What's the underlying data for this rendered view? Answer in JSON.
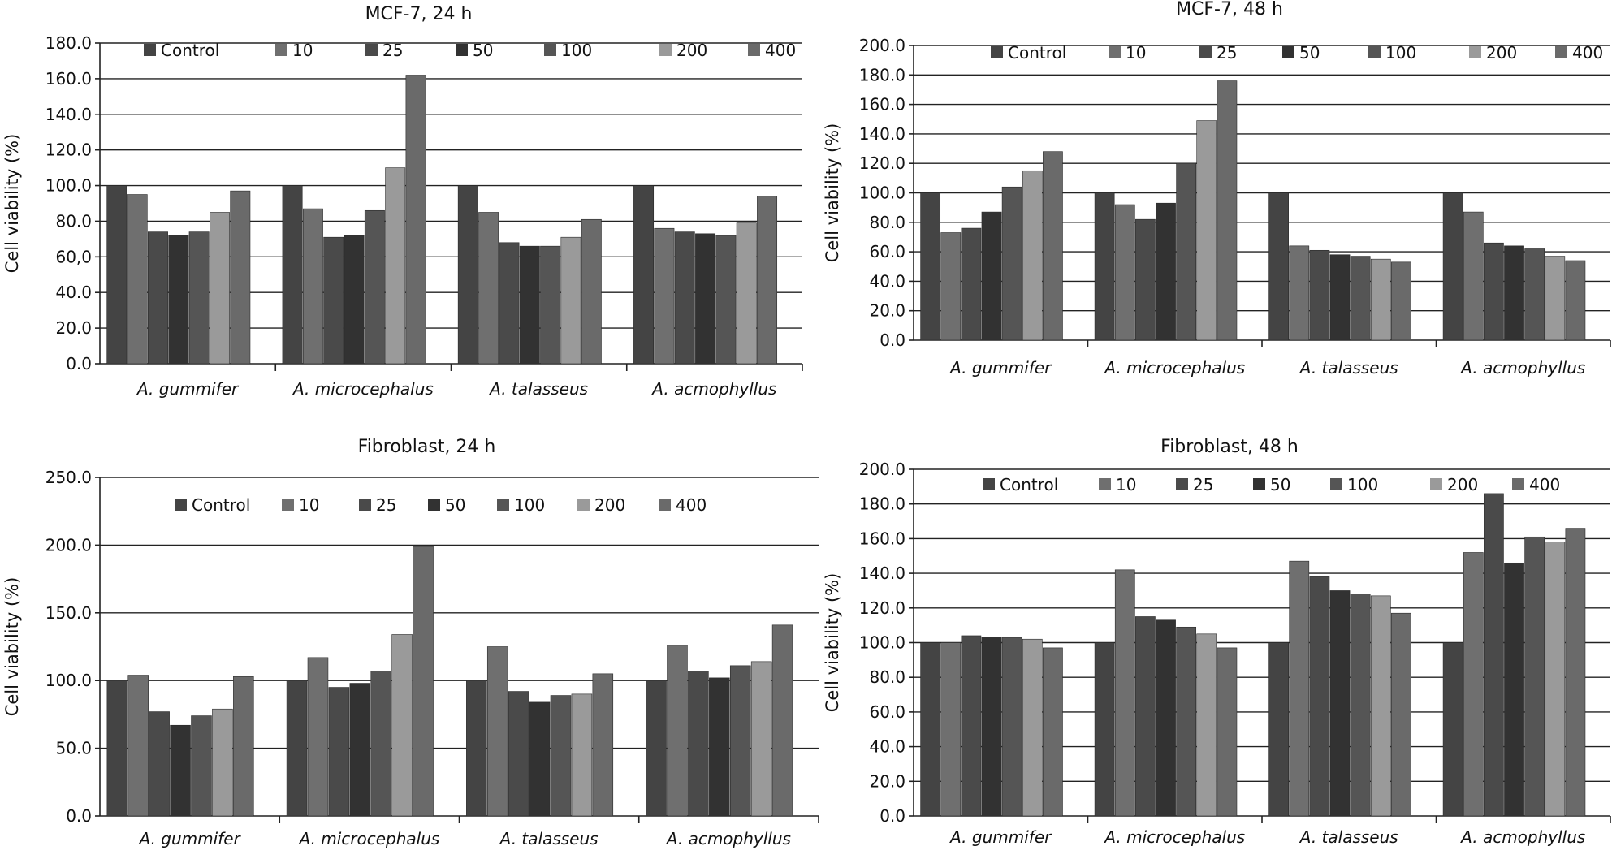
{
  "figure": "cell-viability-panels",
  "colors": {
    "Control": "#444444",
    "10": "#6f6f6f",
    "25": "#4a4a4a",
    "50": "#323232",
    "100": "#555555",
    "200": "#9a9a9a",
    "400": "#6a6a6a"
  },
  "chart_data": [
    {
      "id": "mcf7-24",
      "type": "bar",
      "title": "MCF-7, 24 h",
      "ylabel": "Cell viability  (%)",
      "xlabel": "",
      "ylim": [
        0,
        180
      ],
      "ystep": 20,
      "tick_labels": [
        "0.0",
        "20.0",
        "40.0",
        "60,0",
        "80.0",
        "100.0",
        "120.0",
        "140.0",
        "160.0",
        "180.0"
      ],
      "categories": [
        "A. gummifer",
        "A. microcephalus",
        "A. talasseus",
        "A. acmophyllus"
      ],
      "legend": [
        "Control",
        "10",
        "25",
        "50",
        "100",
        "200",
        "400"
      ],
      "series": [
        {
          "name": "Control",
          "values": [
            100,
            100,
            100,
            100
          ]
        },
        {
          "name": "10",
          "values": [
            95,
            87,
            85,
            76
          ]
        },
        {
          "name": "25",
          "values": [
            74,
            71,
            68,
            74
          ]
        },
        {
          "name": "50",
          "values": [
            72,
            72,
            66,
            73
          ]
        },
        {
          "name": "100",
          "values": [
            74,
            86,
            66,
            72
          ]
        },
        {
          "name": "200",
          "values": [
            85,
            110,
            71,
            79
          ]
        },
        {
          "name": "400",
          "values": [
            97,
            162,
            81,
            94
          ]
        }
      ]
    },
    {
      "id": "mcf7-48",
      "type": "bar",
      "title": "MCF-7, 48 h",
      "ylabel": "Cell viability  (%)",
      "xlabel": "",
      "ylim": [
        0,
        200
      ],
      "ystep": 20,
      "tick_labels": [
        "0.0",
        "20.0",
        "40.0",
        "60.0",
        "80.0",
        "100.0",
        "120.0",
        "140.0",
        "160.0",
        "180.0",
        "200.0"
      ],
      "categories": [
        "A. gummifer",
        "A. microcephalus",
        "A. talasseus",
        "A. acmophyllus"
      ],
      "legend": [
        "Control",
        "10",
        "25",
        "50",
        "100",
        "200",
        "400"
      ],
      "series": [
        {
          "name": "Control",
          "values": [
            100,
            100,
            100,
            100
          ]
        },
        {
          "name": "10",
          "values": [
            73,
            92,
            64,
            87
          ]
        },
        {
          "name": "25",
          "values": [
            76,
            82,
            61,
            66
          ]
        },
        {
          "name": "50",
          "values": [
            87,
            93,
            58,
            64
          ]
        },
        {
          "name": "100",
          "values": [
            104,
            120,
            57,
            62
          ]
        },
        {
          "name": "200",
          "values": [
            115,
            149,
            55,
            57
          ]
        },
        {
          "name": "400",
          "values": [
            128,
            176,
            53,
            54
          ]
        }
      ]
    },
    {
      "id": "fibro-24",
      "type": "bar",
      "title": "Fibroblast, 24 h",
      "ylabel": "Cell viability  (%)",
      "xlabel": "",
      "ylim": [
        0,
        250
      ],
      "ystep": 50,
      "tick_labels": [
        "0.0",
        "50.0",
        "100.0",
        "150.0",
        "200.0",
        "250.0"
      ],
      "categories": [
        "A. gummifer",
        "A. microcephalus",
        "A. talasseus",
        "A. acmophyllus"
      ],
      "legend": [
        "Control",
        "10",
        "25",
        "50",
        "100",
        "200",
        "400"
      ],
      "series": [
        {
          "name": "Control",
          "values": [
            100,
            100,
            100,
            100
          ]
        },
        {
          "name": "10",
          "values": [
            104,
            117,
            125,
            126
          ]
        },
        {
          "name": "25",
          "values": [
            77,
            95,
            92,
            107
          ]
        },
        {
          "name": "50",
          "values": [
            67,
            98,
            84,
            102
          ]
        },
        {
          "name": "100",
          "values": [
            74,
            107,
            89,
            111
          ]
        },
        {
          "name": "200",
          "values": [
            79,
            134,
            90,
            114
          ]
        },
        {
          "name": "400",
          "values": [
            103,
            199,
            105,
            141
          ]
        }
      ]
    },
    {
      "id": "fibro-48",
      "type": "bar",
      "title": "Fibroblast, 48 h",
      "ylabel": "Cell viability  (%)",
      "xlabel": "",
      "ylim": [
        0,
        200
      ],
      "ystep": 20,
      "tick_labels": [
        "0.0",
        "20.0",
        "40.0",
        "60.0",
        "80.0",
        "100.0",
        "120.0",
        "140.0",
        "160.0",
        "180.0",
        "200.0"
      ],
      "categories": [
        "A. gummifer",
        "A. microcephalus",
        "A. talasseus",
        "A. acmophyllus"
      ],
      "legend": [
        "Control",
        "10",
        "25",
        "50",
        "100",
        "200",
        "400"
      ],
      "series": [
        {
          "name": "Control",
          "values": [
            100,
            100,
            100,
            100
          ]
        },
        {
          "name": "10",
          "values": [
            100,
            142,
            147,
            152
          ]
        },
        {
          "name": "25",
          "values": [
            104,
            115,
            138,
            186
          ]
        },
        {
          "name": "50",
          "values": [
            103,
            113,
            130,
            146
          ]
        },
        {
          "name": "100",
          "values": [
            103,
            109,
            128,
            161
          ]
        },
        {
          "name": "200",
          "values": [
            102,
            105,
            127,
            158
          ]
        },
        {
          "name": "400",
          "values": [
            97,
            97,
            117,
            166
          ]
        }
      ]
    }
  ]
}
